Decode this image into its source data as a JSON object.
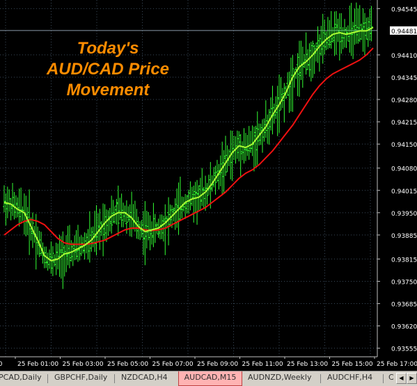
{
  "chart_data": {
    "type": "line",
    "title": "Today's AUD/CAD Price Movement",
    "symbol": "AUDCAD",
    "timeframe": "M15",
    "current_price": "0.94481",
    "y_tick_labels": [
      "0.94545",
      "0.94481",
      "0.94410",
      "0.94345",
      "0.94280",
      "0.94215",
      "0.94150",
      "0.94080",
      "0.94015",
      "0.93950",
      "0.93885",
      "0.93815",
      "0.93750",
      "0.93685",
      "0.93620",
      "0.93555"
    ],
    "x_tick_labels": [
      "25 Feb 01:00",
      "25 Feb 03:00",
      "25 Feb 05:00",
      "25 Feb 07:00",
      "25 Feb 09:00",
      "25 Feb 11:00",
      "25 Feb 13:00",
      "25 Feb 15:00",
      "25 Feb 17:00"
    ],
    "ylim": [
      0.9353,
      0.9457
    ],
    "grid": true,
    "colors": {
      "background": "#000000",
      "grid": "#3a4a5a",
      "bars": "#33ff33",
      "fast_ma": "#aaff33",
      "slow_ma": "#ee1111",
      "title": "#ff8c00",
      "axis_text": "#ffffff",
      "price_line": "#8a9aaa"
    },
    "fast_ma": [
      0.9398,
      0.93975,
      0.9396,
      0.9395,
      0.9391,
      0.9387,
      0.93825,
      0.9381,
      0.93815,
      0.9383,
      0.93835,
      0.93845,
      0.93855,
      0.9387,
      0.93895,
      0.9392,
      0.9394,
      0.9395,
      0.9395,
      0.93935,
      0.9391,
      0.93895,
      0.939,
      0.93905,
      0.9392,
      0.9394,
      0.9396,
      0.9398,
      0.9399,
      0.93995,
      0.9401,
      0.94035,
      0.94065,
      0.94095,
      0.94125,
      0.94145,
      0.9414,
      0.9415,
      0.94175,
      0.942,
      0.94235,
      0.94265,
      0.943,
      0.94345,
      0.94375,
      0.9439,
      0.9441,
      0.94435,
      0.94455,
      0.9447,
      0.94475,
      0.9447,
      0.94475,
      0.9448,
      0.9448,
      0.9449
    ],
    "slow_ma": [
      0.93885,
      0.939,
      0.93915,
      0.93925,
      0.9393,
      0.93925,
      0.93915,
      0.93895,
      0.93875,
      0.93862,
      0.93858,
      0.93858,
      0.93858,
      0.9386,
      0.93865,
      0.9387,
      0.9388,
      0.9389,
      0.939,
      0.93905,
      0.93905,
      0.939,
      0.93898,
      0.939,
      0.93905,
      0.93915,
      0.93925,
      0.93935,
      0.93945,
      0.93955,
      0.93965,
      0.9398,
      0.93995,
      0.9401,
      0.9403,
      0.9405,
      0.94065,
      0.94075,
      0.9409,
      0.9411,
      0.9413,
      0.94155,
      0.9418,
      0.94205,
      0.94235,
      0.94265,
      0.94295,
      0.9432,
      0.9434,
      0.94355,
      0.94365,
      0.94375,
      0.94385,
      0.94395,
      0.9441,
      0.9443
    ]
  },
  "tabs": [
    {
      "label": "PCAD,Daily",
      "active": false
    },
    {
      "label": "GBPCHF,Daily",
      "active": false
    },
    {
      "label": "NZDCAD,H4",
      "active": false
    },
    {
      "label": "AUDCAD,M15",
      "active": true
    },
    {
      "label": "AUDNZD,Weekly",
      "active": false
    },
    {
      "label": "AUDCHF,H4",
      "active": false
    },
    {
      "label": "C",
      "active": false
    }
  ],
  "scroll": {
    "left_glyph": "◀",
    "right_glyph": "▶"
  },
  "icons": {
    "scroll_left": "scroll-left-icon",
    "scroll_right": "scroll-right-icon"
  }
}
